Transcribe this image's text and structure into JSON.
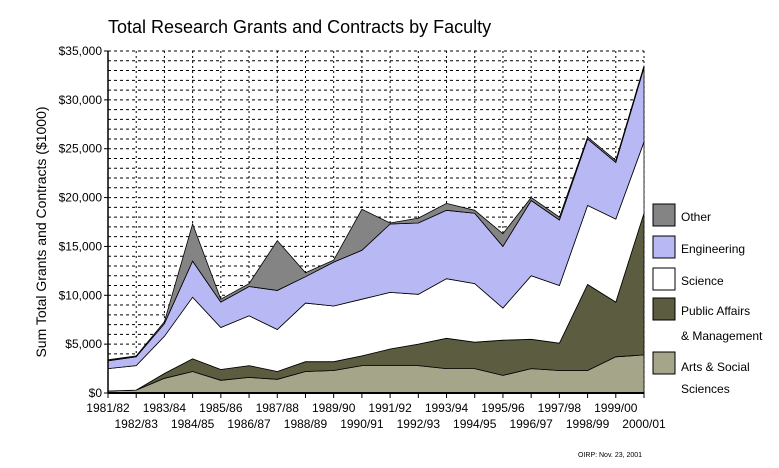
{
  "chart_data": {
    "type": "area",
    "title": "Total Research Grants and Contracts by Faculty",
    "xlabel": "",
    "ylabel": "Sum Total Grants and Contracts ($1000)",
    "ylim": [
      0,
      35000
    ],
    "yticks": [
      "$0",
      "$5,000",
      "$10,000",
      "$15,000",
      "$20,000",
      "$25,000",
      "$30,000",
      "$35,000"
    ],
    "stacked": true,
    "grid": "horizontal dashed every 1000",
    "legend_position": "right",
    "categories": [
      "1981/82",
      "1982/83",
      "1983/84",
      "1984/85",
      "1985/86",
      "1986/87",
      "1987/88",
      "1988/89",
      "1989/90",
      "1990/91",
      "1991/92",
      "1992/93",
      "1993/94",
      "1994/95",
      "1995/96",
      "1996/97",
      "1997/98",
      "1998/99",
      "1999/00",
      "2000/01"
    ],
    "series": [
      {
        "name": "Arts & Social Sciences",
        "color": "#a5a58a",
        "values": [
          200,
          300,
          1500,
          2200,
          1300,
          1600,
          1400,
          2200,
          2300,
          2800,
          2800,
          2800,
          2500,
          2500,
          1800,
          2500,
          2300,
          2300,
          3700,
          3900
        ]
      },
      {
        "name": "Public Affairs & Management",
        "color": "#5c5c40",
        "values": [
          0,
          0,
          500,
          1300,
          1100,
          1200,
          800,
          1000,
          900,
          1000,
          1700,
          2200,
          3100,
          2700,
          3600,
          3000,
          2800,
          8800,
          5600,
          14500
        ]
      },
      {
        "name": "Science",
        "color": "#ffffff",
        "values": [
          2300,
          2500,
          3800,
          6300,
          4300,
          5100,
          4300,
          6000,
          5700,
          5800,
          5800,
          5100,
          6100,
          6000,
          3300,
          6500,
          5900,
          8100,
          8500,
          7300
        ]
      },
      {
        "name": "Engineering",
        "color": "#b8b8f4",
        "values": [
          800,
          900,
          1300,
          3700,
          2600,
          3000,
          4000,
          2700,
          4500,
          5000,
          7000,
          7300,
          7000,
          7200,
          6300,
          7700,
          6700,
          6800,
          5800,
          7600
        ]
      },
      {
        "name": "Other",
        "color": "#848484",
        "values": [
          100,
          100,
          200,
          3800,
          300,
          300,
          5100,
          400,
          200,
          4200,
          100,
          500,
          700,
          300,
          1300,
          300,
          300,
          200,
          200,
          200
        ]
      }
    ],
    "legend_order": [
      "Other",
      "Engineering",
      "Science",
      "Public Affairs & Management",
      "Arts & Social Sciences"
    ]
  },
  "legend": {
    "other": "Other",
    "engineering": "Engineering",
    "science": "Science",
    "public_affairs_line1": "Public Affairs",
    "public_affairs_line2": "& Management",
    "arts_line1": "Arts & Social",
    "arts_line2": "Sciences"
  },
  "footnote": "OIRP: Nov. 23, 2001"
}
